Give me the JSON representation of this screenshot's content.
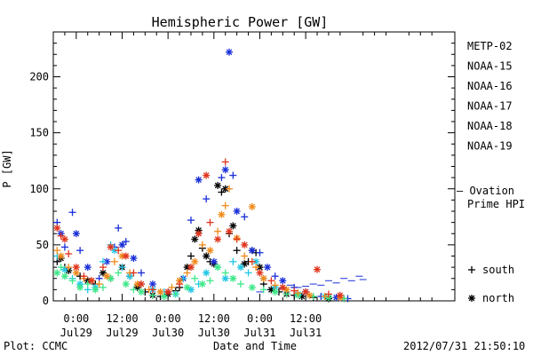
{
  "chart_data": {
    "type": "scatter",
    "title": "Hemispheric Power [GW]",
    "xlabel": "Date and Time",
    "ylabel": "P [GW]",
    "ylim": [
      0,
      240
    ],
    "xlim": [
      -6,
      99
    ],
    "x_unit": "hours",
    "yticks": [
      0,
      50,
      100,
      150,
      200
    ],
    "xticks": [
      {
        "x": 0,
        "time": "0:00",
        "date": "Jul29"
      },
      {
        "x": 12,
        "time": "12:00",
        "date": "Jul29"
      },
      {
        "x": 24,
        "time": "0:00",
        "date": "Jul30"
      },
      {
        "x": 36,
        "time": "12:00",
        "date": "Jul30"
      },
      {
        "x": 48,
        "time": "0:00",
        "date": "Jul31"
      },
      {
        "x": 60,
        "time": "12:00",
        "date": "Jul31"
      }
    ],
    "legend_position": "right",
    "series": [
      {
        "name": "METP-02",
        "color": "#000000",
        "points": [
          [
            -5,
            35,
            "s"
          ],
          [
            -4,
            38,
            "n"
          ],
          [
            -3,
            30,
            "s"
          ],
          [
            -2,
            27,
            "n"
          ],
          [
            1,
            22,
            "s"
          ],
          [
            3,
            18,
            "n"
          ],
          [
            5,
            15,
            "s"
          ],
          [
            7,
            25,
            "n"
          ],
          [
            9,
            20,
            "s"
          ],
          [
            12,
            30,
            "n"
          ],
          [
            14,
            22,
            "s"
          ],
          [
            16,
            12,
            "n"
          ],
          [
            18,
            8,
            "s"
          ],
          [
            20,
            5,
            "n"
          ],
          [
            22,
            4,
            "s"
          ],
          [
            24,
            6,
            "n"
          ],
          [
            26,
            9,
            "s"
          ],
          [
            27,
            12,
            "s"
          ],
          [
            29,
            30,
            "n"
          ],
          [
            30,
            40,
            "s"
          ],
          [
            31,
            55,
            "n"
          ],
          [
            32,
            63,
            "n"
          ],
          [
            33,
            47,
            "s"
          ],
          [
            34,
            40,
            "n"
          ],
          [
            35,
            35,
            "s"
          ],
          [
            36,
            33,
            "n"
          ],
          [
            37,
            103,
            "n"
          ],
          [
            38,
            97,
            "s"
          ],
          [
            39,
            100,
            "n"
          ],
          [
            40,
            60,
            "s"
          ],
          [
            41,
            67,
            "n"
          ],
          [
            42,
            45,
            "s"
          ],
          [
            44,
            33,
            "n"
          ],
          [
            45,
            35,
            "s"
          ],
          [
            46,
            45,
            "n"
          ],
          [
            47,
            43,
            "s"
          ],
          [
            48,
            30,
            "n"
          ],
          [
            49,
            15,
            "s"
          ],
          [
            51,
            10,
            "n"
          ],
          [
            53,
            8,
            "s"
          ],
          [
            55,
            6,
            "n"
          ],
          [
            57,
            5,
            "s"
          ],
          [
            59,
            4,
            "n"
          ],
          [
            62,
            3,
            "s"
          ],
          [
            66,
            2,
            "n"
          ],
          [
            70,
            2,
            "s"
          ]
        ]
      },
      {
        "name": "NOAA-15",
        "color": "#1a2fd8",
        "points": [
          [
            -5,
            70,
            "s"
          ],
          [
            -4,
            60,
            "n"
          ],
          [
            -3,
            48,
            "s"
          ],
          [
            -1,
            79,
            "s"
          ],
          [
            0,
            60,
            "n"
          ],
          [
            1,
            45,
            "s"
          ],
          [
            3,
            30,
            "n"
          ],
          [
            6,
            20,
            "s"
          ],
          [
            8,
            35,
            "n"
          ],
          [
            10,
            48,
            "s"
          ],
          [
            11,
            65,
            "s"
          ],
          [
            12,
            50,
            "n"
          ],
          [
            13,
            53,
            "s"
          ],
          [
            15,
            38,
            "n"
          ],
          [
            17,
            25,
            "s"
          ],
          [
            20,
            15,
            "n"
          ],
          [
            24,
            8,
            "s"
          ],
          [
            28,
            20,
            "n"
          ],
          [
            30,
            72,
            "s"
          ],
          [
            32,
            108,
            "n"
          ],
          [
            34,
            91,
            "s"
          ],
          [
            36,
            35,
            "n"
          ],
          [
            38,
            110,
            "s"
          ],
          [
            39,
            117,
            "n"
          ],
          [
            40,
            222,
            "n"
          ],
          [
            41,
            112,
            "s"
          ],
          [
            42,
            80,
            "n"
          ],
          [
            44,
            75,
            "s"
          ],
          [
            46,
            45,
            "n"
          ],
          [
            48,
            43,
            "s"
          ],
          [
            50,
            30,
            "n"
          ],
          [
            52,
            22,
            "s"
          ],
          [
            54,
            18,
            "n"
          ],
          [
            57,
            12,
            "s"
          ],
          [
            60,
            8,
            "n"
          ],
          [
            64,
            4,
            "s"
          ],
          [
            68,
            3,
            "n"
          ],
          [
            71,
            2,
            "s"
          ]
        ]
      },
      {
        "name": "NOAA-16",
        "color": "#22c6e6",
        "points": [
          [
            -5,
            40,
            "s"
          ],
          [
            -3,
            28,
            "n"
          ],
          [
            -1,
            20,
            "s"
          ],
          [
            1,
            15,
            "n"
          ],
          [
            3,
            10,
            "s"
          ],
          [
            5,
            12,
            "n"
          ],
          [
            7,
            35,
            "s"
          ],
          [
            9,
            50,
            "s"
          ],
          [
            10,
            45,
            "n"
          ],
          [
            12,
            30,
            "s"
          ],
          [
            14,
            22,
            "n"
          ],
          [
            17,
            15,
            "s"
          ],
          [
            20,
            10,
            "n"
          ],
          [
            23,
            8,
            "s"
          ],
          [
            26,
            6,
            "n"
          ],
          [
            28,
            20,
            "s"
          ],
          [
            30,
            10,
            "n"
          ],
          [
            32,
            15,
            "s"
          ],
          [
            34,
            25,
            "n"
          ],
          [
            37,
            30,
            "s"
          ],
          [
            39,
            20,
            "n"
          ],
          [
            41,
            35,
            "s"
          ],
          [
            43,
            30,
            "n"
          ],
          [
            45,
            25,
            "s"
          ],
          [
            47,
            35,
            "n"
          ],
          [
            49,
            20,
            "s"
          ],
          [
            52,
            12,
            "n"
          ],
          [
            55,
            8,
            "s"
          ],
          [
            58,
            6,
            "n"
          ],
          [
            61,
            5,
            "s"
          ],
          [
            65,
            4,
            "n"
          ],
          [
            69,
            3,
            "s"
          ]
        ]
      },
      {
        "name": "NOAA-17",
        "color": "#3ee88a",
        "points": [
          [
            -5,
            25,
            "n"
          ],
          [
            -4,
            30,
            "s"
          ],
          [
            -3,
            22,
            "n"
          ],
          [
            -1,
            18,
            "s"
          ],
          [
            1,
            12,
            "n"
          ],
          [
            3,
            15,
            "s"
          ],
          [
            5,
            10,
            "n"
          ],
          [
            7,
            12,
            "s"
          ],
          [
            9,
            20,
            "n"
          ],
          [
            11,
            25,
            "s"
          ],
          [
            13,
            15,
            "n"
          ],
          [
            15,
            10,
            "s"
          ],
          [
            17,
            8,
            "n"
          ],
          [
            20,
            5,
            "s"
          ],
          [
            23,
            4,
            "n"
          ],
          [
            26,
            6,
            "s"
          ],
          [
            29,
            12,
            "n"
          ],
          [
            31,
            20,
            "s"
          ],
          [
            33,
            15,
            "n"
          ],
          [
            35,
            18,
            "s"
          ],
          [
            37,
            30,
            "n"
          ],
          [
            39,
            25,
            "s"
          ],
          [
            41,
            20,
            "n"
          ],
          [
            43,
            15,
            "s"
          ],
          [
            46,
            12,
            "n"
          ],
          [
            49,
            10,
            "s"
          ],
          [
            52,
            8,
            "n"
          ],
          [
            55,
            6,
            "s"
          ],
          [
            58,
            5,
            "n"
          ],
          [
            62,
            4,
            "s"
          ],
          [
            66,
            3,
            "n"
          ],
          [
            70,
            2,
            "s"
          ]
        ]
      },
      {
        "name": "NOAA-18",
        "color": "#f08a1a",
        "points": [
          [
            -5,
            45,
            "s"
          ],
          [
            -4,
            40,
            "n"
          ],
          [
            -2,
            30,
            "s"
          ],
          [
            0,
            25,
            "n"
          ],
          [
            2,
            20,
            "s"
          ],
          [
            4,
            18,
            "n"
          ],
          [
            6,
            15,
            "s"
          ],
          [
            8,
            22,
            "n"
          ],
          [
            10,
            35,
            "s"
          ],
          [
            12,
            40,
            "n"
          ],
          [
            14,
            25,
            "s"
          ],
          [
            16,
            15,
            "n"
          ],
          [
            19,
            10,
            "s"
          ],
          [
            22,
            8,
            "n"
          ],
          [
            25,
            12,
            "s"
          ],
          [
            27,
            18,
            "n"
          ],
          [
            29,
            25,
            "s"
          ],
          [
            31,
            35,
            "n"
          ],
          [
            33,
            50,
            "s"
          ],
          [
            35,
            45,
            "n"
          ],
          [
            37,
            62,
            "s"
          ],
          [
            38,
            77,
            "n"
          ],
          [
            39,
            85,
            "s"
          ],
          [
            40,
            100,
            "s"
          ],
          [
            42,
            56,
            "n"
          ],
          [
            44,
            40,
            "s"
          ],
          [
            46,
            84,
            "n"
          ],
          [
            47,
            30,
            "s"
          ],
          [
            49,
            20,
            "n"
          ],
          [
            52,
            14,
            "s"
          ],
          [
            55,
            10,
            "n"
          ],
          [
            58,
            7,
            "s"
          ],
          [
            61,
            5,
            "n"
          ],
          [
            65,
            4,
            "s"
          ],
          [
            69,
            3,
            "n"
          ]
        ]
      },
      {
        "name": "NOAA-19",
        "color": "#e0341c",
        "points": [
          [
            -5,
            65,
            "n"
          ],
          [
            -4,
            58,
            "s"
          ],
          [
            -3,
            55,
            "n"
          ],
          [
            -2,
            42,
            "s"
          ],
          [
            0,
            30,
            "n"
          ],
          [
            2,
            22,
            "s"
          ],
          [
            4,
            18,
            "n"
          ],
          [
            7,
            30,
            "s"
          ],
          [
            9,
            48,
            "n"
          ],
          [
            11,
            45,
            "s"
          ],
          [
            13,
            40,
            "n"
          ],
          [
            15,
            25,
            "s"
          ],
          [
            17,
            15,
            "n"
          ],
          [
            20,
            10,
            "s"
          ],
          [
            24,
            8,
            "n"
          ],
          [
            27,
            15,
            "s"
          ],
          [
            30,
            30,
            "n"
          ],
          [
            32,
            60,
            "n"
          ],
          [
            34,
            112,
            "n"
          ],
          [
            35,
            70,
            "s"
          ],
          [
            37,
            55,
            "n"
          ],
          [
            39,
            124,
            "s"
          ],
          [
            40,
            62,
            "n"
          ],
          [
            42,
            55,
            "s"
          ],
          [
            44,
            50,
            "n"
          ],
          [
            46,
            35,
            "s"
          ],
          [
            48,
            25,
            "n"
          ],
          [
            51,
            18,
            "s"
          ],
          [
            54,
            12,
            "n"
          ],
          [
            57,
            9,
            "s"
          ],
          [
            60,
            8,
            "n"
          ],
          [
            63,
            28,
            "n"
          ],
          [
            66,
            6,
            "s"
          ],
          [
            69,
            5,
            "n"
          ]
        ]
      }
    ],
    "ovation_series": {
      "name": "Ovation Prime HPI",
      "legend_label_line1": "— Ovation",
      "legend_label_line2": "Prime HPI",
      "color": "#1a2fd8",
      "points": [
        [
          48,
          8
        ],
        [
          50,
          10
        ],
        [
          52,
          12
        ],
        [
          54,
          11
        ],
        [
          56,
          14
        ],
        [
          58,
          12
        ],
        [
          60,
          13
        ],
        [
          62,
          15
        ],
        [
          64,
          14
        ],
        [
          66,
          18
        ],
        [
          68,
          16
        ],
        [
          70,
          20
        ],
        [
          72,
          18
        ],
        [
          74,
          22
        ],
        [
          75,
          19
        ]
      ]
    },
    "symbol_legend": [
      {
        "symbol": "+",
        "label": "south"
      },
      {
        "symbol": "*",
        "label": "north"
      }
    ]
  },
  "footer": {
    "left": "Plot: CCMC",
    "right": "2012/07/31 21:50:10"
  }
}
